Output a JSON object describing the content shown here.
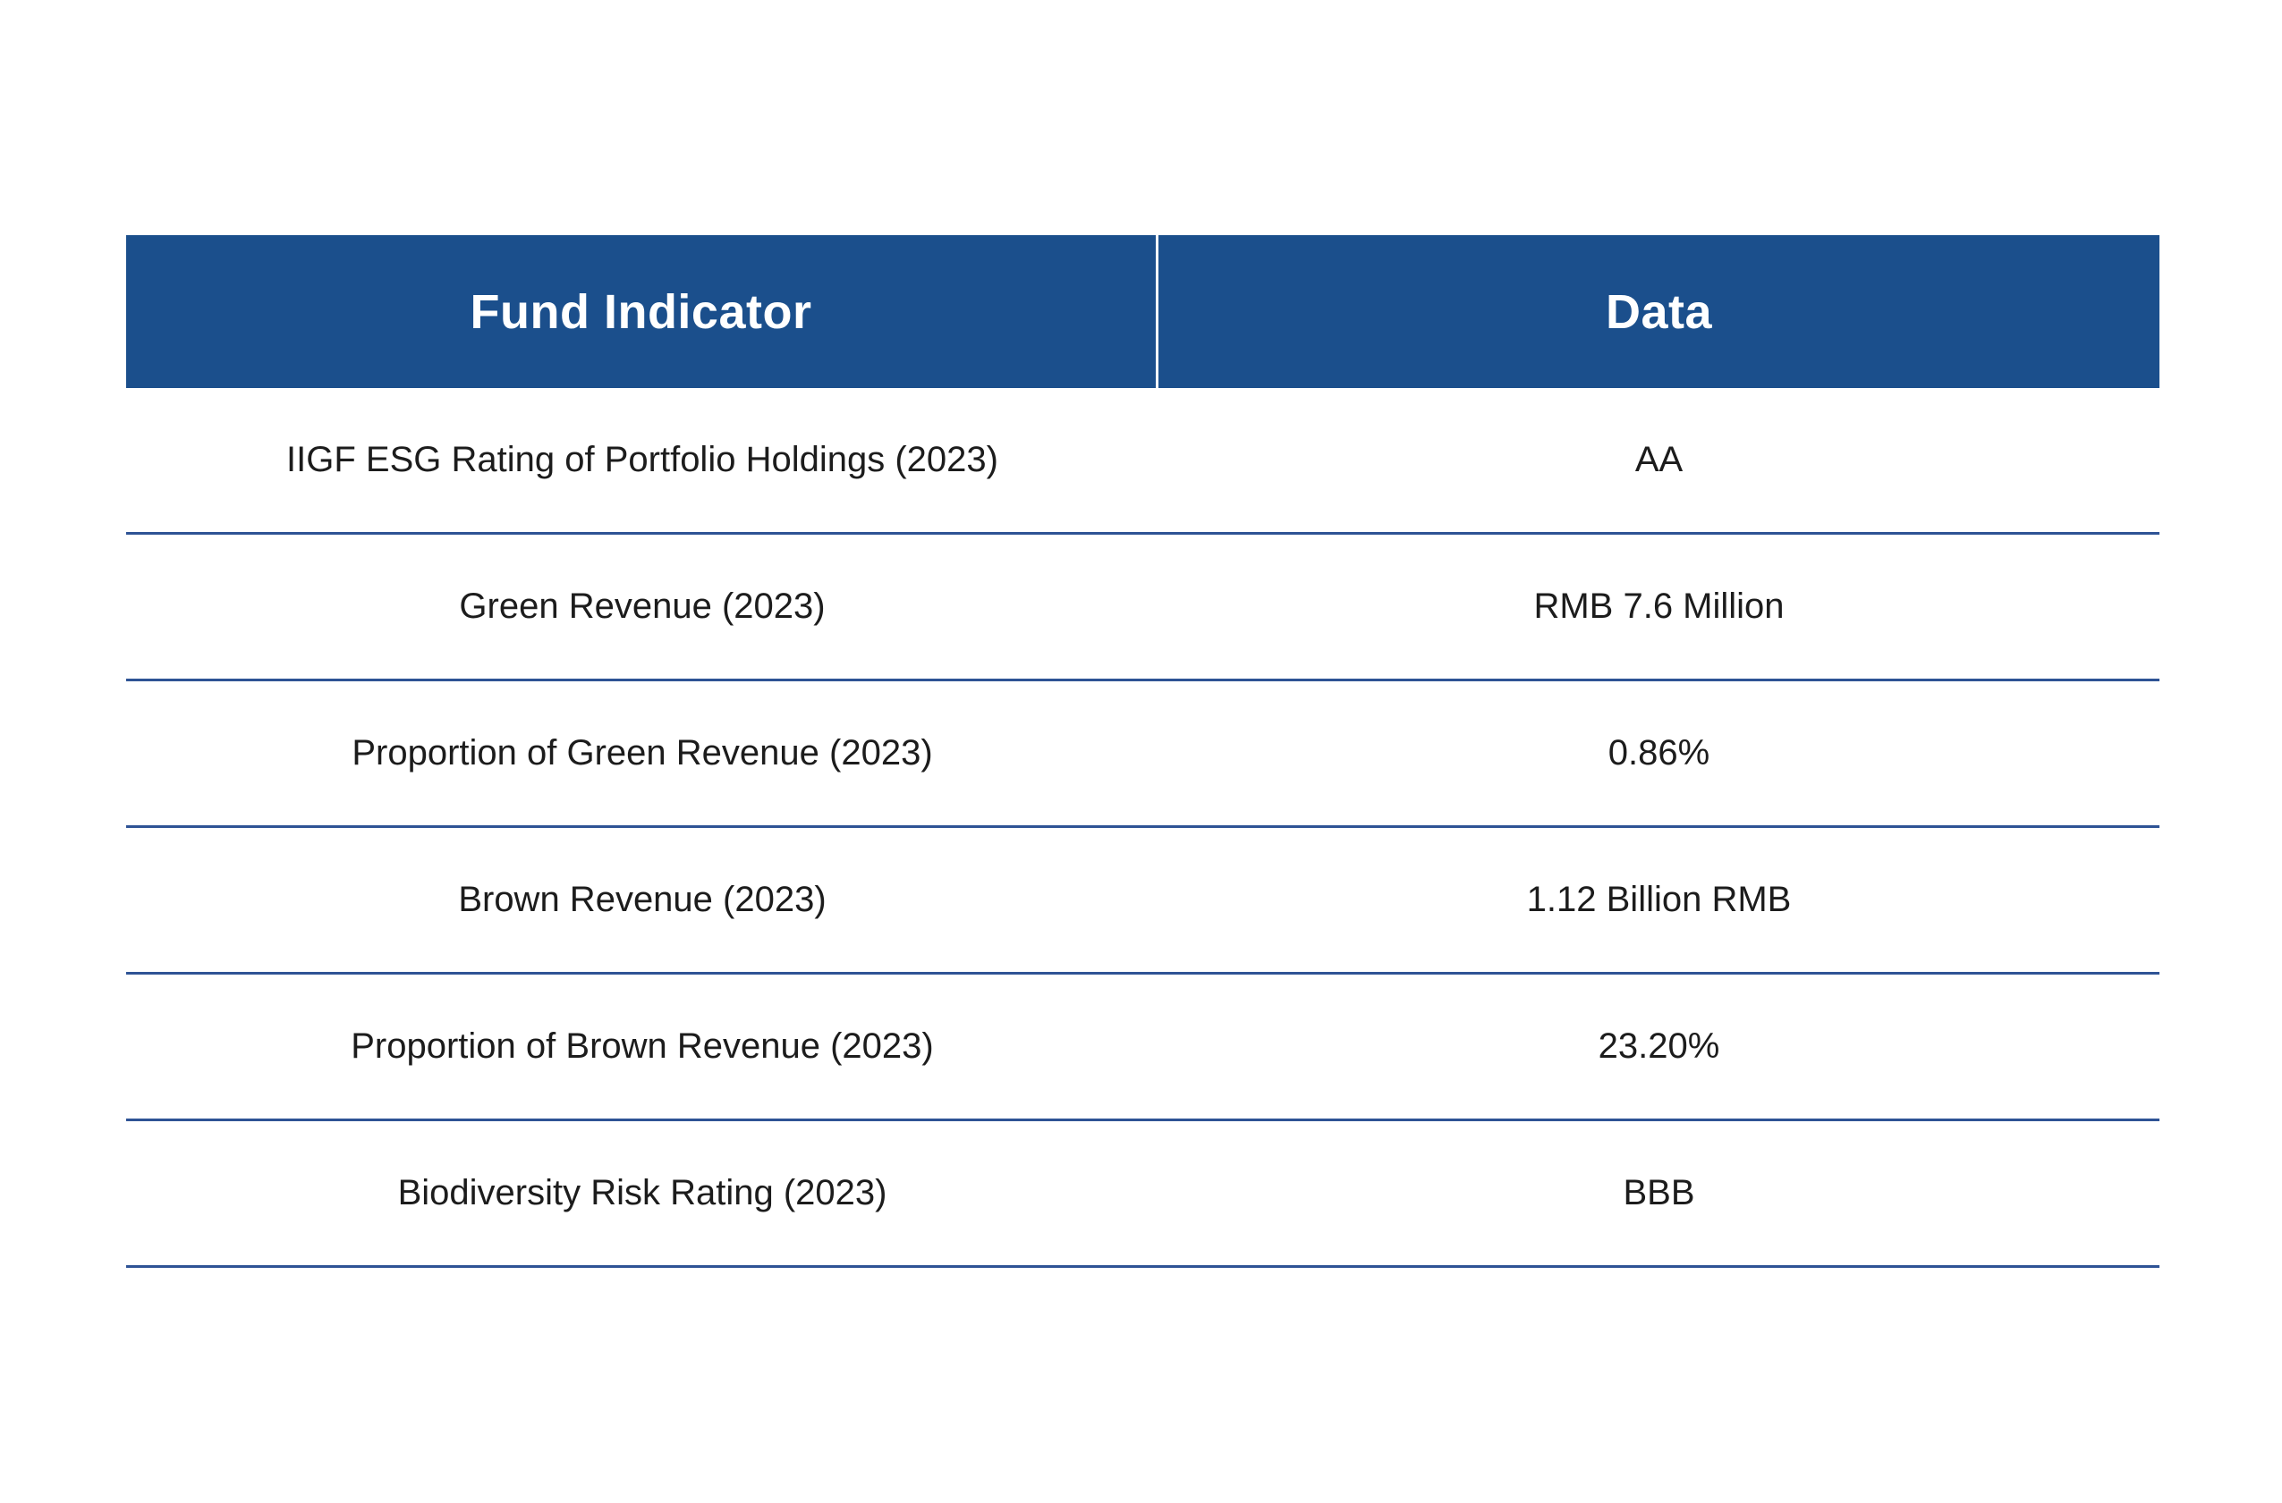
{
  "table": {
    "columns": [
      {
        "label": "Fund Indicator"
      },
      {
        "label": "Data"
      }
    ],
    "rows": [
      {
        "indicator": "IIGF ESG Rating of Portfolio Holdings (2023)",
        "data": "AA"
      },
      {
        "indicator": "Green Revenue (2023)",
        "data": "RMB 7.6 Million"
      },
      {
        "indicator": "Proportion of Green Revenue (2023)",
        "data": "0.86%"
      },
      {
        "indicator": "Brown Revenue (2023)",
        "data": "1.12 Billion RMB"
      },
      {
        "indicator": "Proportion of Brown Revenue (2023)",
        "data": "23.20%"
      },
      {
        "indicator": "Biodiversity Risk Rating (2023)",
        "data": "BBB"
      }
    ],
    "colors": {
      "header_background": "#1B4F8C",
      "header_text": "#FFFFFF",
      "row_divider": "#2E5395",
      "row_text": "#1C1C1C",
      "page_background": "#FFFFFF"
    }
  },
  "chart_data": {
    "type": "table",
    "title": "",
    "columns": [
      "Fund Indicator",
      "Data"
    ],
    "rows": [
      [
        "IIGF ESG Rating of Portfolio Holdings (2023)",
        "AA"
      ],
      [
        "Green Revenue (2023)",
        "RMB 7.6 Million"
      ],
      [
        "Proportion of Green Revenue (2023)",
        "0.86%"
      ],
      [
        "Brown Revenue (2023)",
        "1.12 Billion RMB"
      ],
      [
        "Proportion of Brown Revenue (2023)",
        "23.20%"
      ],
      [
        "Biodiversity Risk Rating (2023)",
        "BBB"
      ]
    ]
  }
}
